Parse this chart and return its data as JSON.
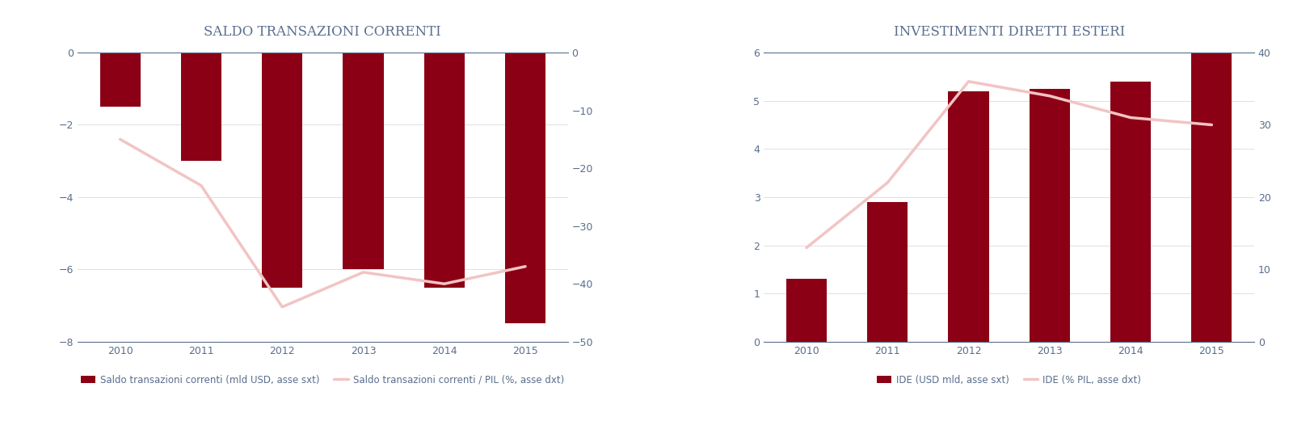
{
  "chart1": {
    "title": "SALDO TRANSAZIONI CORRENTI",
    "years": [
      2010,
      2011,
      2012,
      2013,
      2014,
      2015
    ],
    "bars": [
      -1.5,
      -3.0,
      -6.5,
      -6.0,
      -6.5,
      -7.5
    ],
    "line": [
      -15,
      -23,
      -44,
      -38,
      -40,
      -37
    ],
    "bar_color": "#8B0015",
    "line_color": "#F2C4C4",
    "ylim_left": [
      -8,
      0
    ],
    "ylim_right": [
      -50,
      0
    ],
    "yticks_left": [
      0,
      -2,
      -4,
      -6,
      -8
    ],
    "yticks_right": [
      0,
      -10,
      -20,
      -30,
      -40,
      -50
    ],
    "legend_bar": "Saldo transazioni correnti (mld USD, asse sxt)",
    "legend_line": "Saldo transazioni correnti / PIL (%, asse dxt)"
  },
  "chart2": {
    "title": "INVESTIMENTI DIRETTI ESTERI",
    "years": [
      2010,
      2011,
      2012,
      2013,
      2014,
      2015
    ],
    "bars": [
      1.3,
      2.9,
      5.2,
      5.25,
      5.4,
      6.0
    ],
    "line": [
      13,
      22,
      36,
      34,
      31,
      30
    ],
    "bar_color": "#8B0015",
    "line_color": "#F2C4C4",
    "ylim_left": [
      0,
      6
    ],
    "ylim_right": [
      0,
      40
    ],
    "yticks_left": [
      0,
      1,
      2,
      3,
      4,
      5,
      6
    ],
    "yticks_right": [
      0,
      10,
      20,
      30,
      40
    ],
    "legend_bar": "IDE (USD mld, asse sxt)",
    "legend_line": "IDE (% PIL, asse dxt)"
  },
  "title_color": "#5A6E8C",
  "axis_color": "#5A6E8C",
  "tick_color": "#5A6E8C",
  "background_color": "#FFFFFF",
  "title_fontsize": 12,
  "tick_fontsize": 9,
  "legend_fontsize": 8.5,
  "bar_width": 0.5
}
